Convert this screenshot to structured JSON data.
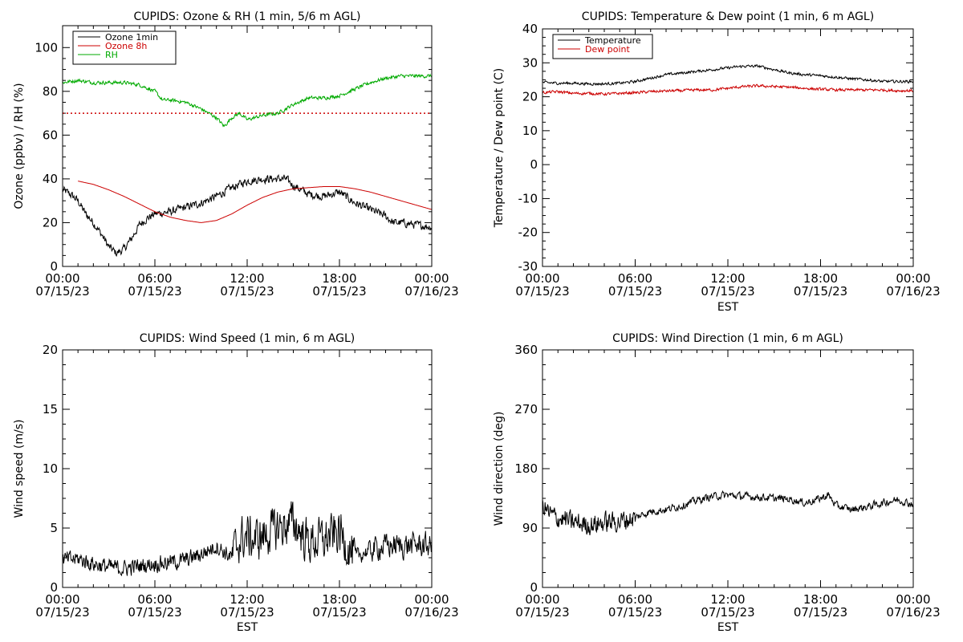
{
  "chart_data": [
    {
      "type": "line",
      "title": "CUPIDS: Ozone & RH (1 min, 5/6 m AGL)",
      "xlabel": "",
      "ylabel": "Ozone (ppbv) / RH (%)",
      "x_ticks": [
        "00:00\n07/15/23",
        "06:00\n07/15/23",
        "12:00\n07/15/23",
        "18:00\n07/15/23",
        "00:00\n07/16/23"
      ],
      "xlim": [
        0,
        24
      ],
      "ylim": [
        0,
        110
      ],
      "y_ticks": [
        0,
        20,
        40,
        60,
        80,
        100
      ],
      "legend_position": "top-left",
      "series": [
        {
          "name": "Ozone 1min",
          "color": "#000000",
          "points": [
            [
              0,
              35
            ],
            [
              0.5,
              33
            ],
            [
              1,
              30
            ],
            [
              1.5,
              24
            ],
            [
              2,
              20
            ],
            [
              2.5,
              15
            ],
            [
              3,
              9
            ],
            [
              3.5,
              6
            ],
            [
              4,
              8
            ],
            [
              4.5,
              13
            ],
            [
              5,
              19
            ],
            [
              5.5,
              22
            ],
            [
              6,
              24
            ],
            [
              7,
              25
            ],
            [
              8,
              27
            ],
            [
              9,
              29
            ],
            [
              10,
              32
            ],
            [
              11,
              36
            ],
            [
              12,
              39
            ],
            [
              13,
              40
            ],
            [
              14,
              40
            ],
            [
              14.5,
              40
            ],
            [
              15,
              37
            ],
            [
              16,
              33
            ],
            [
              17,
              32
            ],
            [
              18,
              34
            ],
            [
              19,
              29
            ],
            [
              20,
              26
            ],
            [
              21,
              23
            ],
            [
              21.5,
              20
            ],
            [
              22,
              20
            ],
            [
              23,
              19
            ],
            [
              24,
              18
            ]
          ]
        },
        {
          "name": "Ozone 8h",
          "color": "#cc0000",
          "points": [
            [
              1,
              39
            ],
            [
              2,
              37.5
            ],
            [
              3,
              35
            ],
            [
              4,
              32
            ],
            [
              5,
              28.5
            ],
            [
              6,
              25
            ],
            [
              7,
              22.5
            ],
            [
              8,
              21
            ],
            [
              9,
              20
            ],
            [
              10,
              21
            ],
            [
              11,
              24
            ],
            [
              12,
              28
            ],
            [
              13,
              31.5
            ],
            [
              14,
              34
            ],
            [
              15,
              35.5
            ],
            [
              16,
              36
            ],
            [
              17,
              36.5
            ],
            [
              18,
              36.5
            ],
            [
              19,
              35.5
            ],
            [
              20,
              34
            ],
            [
              21,
              32
            ],
            [
              22,
              30
            ],
            [
              23,
              28
            ],
            [
              24,
              26
            ]
          ]
        },
        {
          "name": "RH",
          "color": "#00aa00",
          "points": [
            [
              0,
              84
            ],
            [
              1,
              85
            ],
            [
              2,
              84
            ],
            [
              3,
              84
            ],
            [
              4,
              84
            ],
            [
              5,
              83
            ],
            [
              6,
              80
            ],
            [
              6.5,
              76
            ],
            [
              7,
              76
            ],
            [
              8,
              75
            ],
            [
              9,
              72
            ],
            [
              10,
              68
            ],
            [
              10.5,
              64
            ],
            [
              11,
              68
            ],
            [
              11.5,
              70
            ],
            [
              12,
              67
            ],
            [
              13,
              69
            ],
            [
              14,
              70
            ],
            [
              15,
              74
            ],
            [
              16,
              77
            ],
            [
              17,
              77
            ],
            [
              18,
              78
            ],
            [
              19,
              81
            ],
            [
              20,
              84
            ],
            [
              21,
              86
            ],
            [
              22,
              87
            ],
            [
              23,
              87
            ],
            [
              24,
              87
            ]
          ]
        }
      ],
      "reference_line": {
        "y": 70,
        "color": "#cc0000",
        "style": "dotted"
      }
    },
    {
      "type": "line",
      "title": "CUPIDS: Temperature & Dew point (1 min, 6 m AGL)",
      "xlabel": "EST",
      "ylabel": "Temperature / Dew point (C)",
      "x_ticks": [
        "00:00\n07/15/23",
        "06:00\n07/15/23",
        "12:00\n07/15/23",
        "18:00\n07/15/23",
        "00:00\n07/16/23"
      ],
      "xlim": [
        0,
        24
      ],
      "ylim": [
        -30,
        40
      ],
      "y_ticks": [
        -30,
        -20,
        -10,
        0,
        10,
        20,
        30,
        40
      ],
      "legend_position": "top-left",
      "series": [
        {
          "name": "Temperature",
          "color": "#000000",
          "points": [
            [
              0,
              24.2
            ],
            [
              1,
              24
            ],
            [
              2,
              24
            ],
            [
              3,
              23.8
            ],
            [
              4,
              23.8
            ],
            [
              5,
              24
            ],
            [
              6,
              24.5
            ],
            [
              7,
              25.5
            ],
            [
              8,
              26.5
            ],
            [
              9,
              27
            ],
            [
              10,
              27.5
            ],
            [
              11,
              28
            ],
            [
              12,
              28.5
            ],
            [
              13,
              29
            ],
            [
              14,
              29
            ],
            [
              15,
              28
            ],
            [
              16,
              27
            ],
            [
              17,
              26.5
            ],
            [
              18,
              26.2
            ],
            [
              19,
              25.8
            ],
            [
              20,
              25.3
            ],
            [
              21,
              25
            ],
            [
              22,
              24.5
            ],
            [
              23,
              24.5
            ],
            [
              24,
              24.5
            ]
          ]
        },
        {
          "name": "Dew point",
          "color": "#cc0000",
          "points": [
            [
              0,
              21.2
            ],
            [
              1,
              21.5
            ],
            [
              2,
              21
            ],
            [
              3,
              21
            ],
            [
              4,
              20.8
            ],
            [
              5,
              21
            ],
            [
              6,
              21.2
            ],
            [
              7,
              21.5
            ],
            [
              8,
              21.7
            ],
            [
              9,
              21.8
            ],
            [
              10,
              22
            ],
            [
              11,
              22
            ],
            [
              12,
              22.5
            ],
            [
              13,
              23
            ],
            [
              14,
              23.2
            ],
            [
              15,
              23
            ],
            [
              16,
              22.8
            ],
            [
              17,
              22.5
            ],
            [
              18,
              22.2
            ],
            [
              19,
              22
            ],
            [
              20,
              22
            ],
            [
              21,
              22
            ],
            [
              22,
              22
            ],
            [
              23,
              21.8
            ],
            [
              24,
              21.8
            ]
          ]
        }
      ]
    },
    {
      "type": "line",
      "title": "CUPIDS: Wind Speed (1 min, 6 m AGL)",
      "xlabel": "EST",
      "ylabel": "Wind speed (m/s)",
      "x_ticks": [
        "00:00\n07/15/23",
        "06:00\n07/15/23",
        "12:00\n07/15/23",
        "18:00\n07/15/23",
        "00:00\n07/16/23"
      ],
      "xlim": [
        0,
        24
      ],
      "ylim": [
        0,
        20
      ],
      "y_ticks": [
        0,
        5,
        10,
        15,
        20
      ],
      "series": [
        {
          "name": "",
          "color": "#000000",
          "points": [
            [
              0,
              2.3
            ],
            [
              1,
              2.4
            ],
            [
              2,
              2
            ],
            [
              3,
              1.7
            ],
            [
              4,
              1.6
            ],
            [
              5,
              1.8
            ],
            [
              6,
              2
            ],
            [
              7,
              2.1
            ],
            [
              8,
              2.3
            ],
            [
              9,
              2.8
            ],
            [
              10,
              3.5
            ],
            [
              11,
              2.5
            ],
            [
              11.5,
              4
            ],
            [
              12,
              4.3
            ],
            [
              12.5,
              4
            ],
            [
              13,
              4.3
            ],
            [
              14,
              5
            ],
            [
              15,
              5.5
            ],
            [
              15.5,
              4.6
            ],
            [
              16,
              3.8
            ],
            [
              17,
              4
            ],
            [
              18,
              4.6
            ],
            [
              18.5,
              3.6
            ],
            [
              19,
              2.5
            ],
            [
              20,
              3.2
            ],
            [
              21,
              3.5
            ],
            [
              22,
              3.5
            ],
            [
              23,
              3.6
            ],
            [
              24,
              3.5
            ]
          ]
        }
      ]
    },
    {
      "type": "line",
      "title": "CUPIDS: Wind Direction (1 min, 6 m AGL)",
      "xlabel": "EST",
      "ylabel": "Wind direction (deg)",
      "x_ticks": [
        "00:00\n07/15/23",
        "06:00\n07/15/23",
        "12:00\n07/15/23",
        "18:00\n07/15/23",
        "00:00\n07/16/23"
      ],
      "xlim": [
        0,
        24
      ],
      "ylim": [
        0,
        360
      ],
      "y_ticks": [
        0,
        90,
        180,
        270,
        360
      ],
      "series": [
        {
          "name": "",
          "color": "#000000",
          "points": [
            [
              0,
              125
            ],
            [
              0.5,
              110
            ],
            [
              1,
              105
            ],
            [
              1.5,
              102
            ],
            [
              2,
              98
            ],
            [
              3,
              95
            ],
            [
              4,
              98
            ],
            [
              5,
              100
            ],
            [
              6,
              106
            ],
            [
              7,
              115
            ],
            [
              8,
              118
            ],
            [
              9,
              124
            ],
            [
              10,
              132
            ],
            [
              11,
              138
            ],
            [
              12,
              140
            ],
            [
              13,
              138
            ],
            [
              14,
              137
            ],
            [
              15,
              135
            ],
            [
              16,
              134
            ],
            [
              17,
              128
            ],
            [
              18,
              135
            ],
            [
              18.5,
              140
            ],
            [
              19,
              124
            ],
            [
              20,
              118
            ],
            [
              21,
              122
            ],
            [
              22,
              128
            ],
            [
              23,
              133
            ],
            [
              24,
              126
            ]
          ]
        }
      ]
    }
  ]
}
